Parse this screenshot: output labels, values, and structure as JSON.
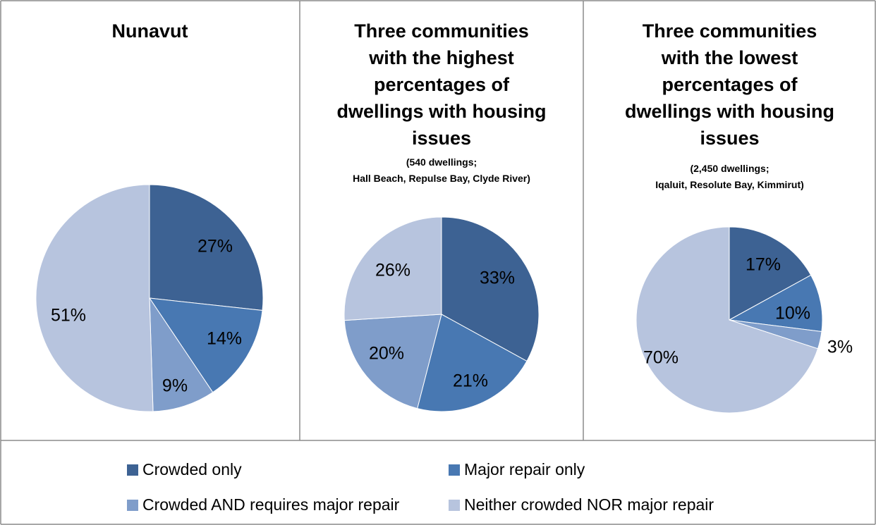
{
  "chart_data": [
    {
      "type": "pie",
      "title": "Nunavut",
      "subtitle": [],
      "categories": [
        "Crowded only",
        "Major repair only",
        "Crowded AND requires major repair",
        "Neither crowded NOR major repair"
      ],
      "values": [
        27,
        14,
        9,
        51
      ],
      "labels": [
        "27%",
        "14%",
        "9%",
        "51%"
      ]
    },
    {
      "type": "pie",
      "title": "Three communities with the highest percentages of dwellings with housing issues",
      "subtitle": [
        "(540 dwellings;",
        "Hall Beach, Repulse Bay, Clyde River)"
      ],
      "categories": [
        "Crowded only",
        "Major repair only",
        "Crowded AND requires major repair",
        "Neither crowded NOR major repair"
      ],
      "values": [
        33,
        21,
        20,
        26
      ],
      "labels": [
        "33%",
        "21%",
        "20%",
        "26%"
      ]
    },
    {
      "type": "pie",
      "title": "Three communities with the lowest percentages of dwellings with housing issues",
      "subtitle": [
        "(2,450 dwellings;",
        "Iqaluit, Resolute Bay, Kimmirut)"
      ],
      "categories": [
        "Crowded only",
        "Major repair only",
        "Crowded AND requires major repair",
        "Neither crowded NOR major repair"
      ],
      "values": [
        17,
        10,
        3,
        70
      ],
      "labels": [
        "17%",
        "10%",
        "3%",
        "70%"
      ]
    }
  ],
  "legend": {
    "placement": "bottom",
    "items": [
      {
        "label": "Crowded only",
        "color": "#3d6293"
      },
      {
        "label": "Major repair only",
        "color": "#4878b2"
      },
      {
        "label": "Crowded AND requires major repair",
        "color": "#7f9dca"
      },
      {
        "label": "Neither crowded NOR major repair",
        "color": "#b7c4de"
      }
    ]
  },
  "panels": [
    {
      "title_lines": [
        "Nunavut"
      ]
    },
    {
      "title_lines": [
        "Three communities",
        "with the highest",
        "percentages of",
        "dwellings with housing",
        "issues"
      ]
    },
    {
      "title_lines": [
        "Three communities",
        "with the lowest",
        "percentages of",
        "dwellings with housing",
        "issues"
      ]
    }
  ]
}
